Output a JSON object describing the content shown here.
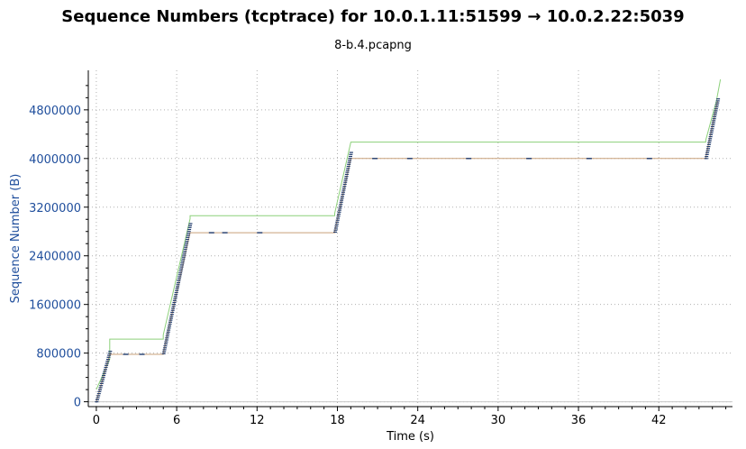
{
  "chart_data": {
    "type": "line",
    "title": "Sequence Numbers (tcptrace) for 10.0.1.11:51599 → 10.0.2.22:5039",
    "subtitle": "8-b.4.pcapng",
    "xlabel": "Time (s)",
    "ylabel": "Sequence Number (B)",
    "xlim": [
      -0.6,
      47.5
    ],
    "ylim": [
      -80000,
      5450000
    ],
    "x_ticks": [
      0,
      6,
      12,
      18,
      24,
      30,
      36,
      42
    ],
    "y_ticks": [
      0,
      800000,
      1600000,
      2400000,
      3200000,
      4000000,
      4800000
    ],
    "grid": true,
    "colors": {
      "data": "#1f3a6b",
      "window": "#8cd07a",
      "ack": "#c9a07a",
      "axis": "#000000",
      "grid": "#b0b0b0",
      "ytick": "#1f4e9c"
    },
    "series": [
      {
        "role": "receive-window",
        "style": "line",
        "color": "#8cd07a",
        "x": [
          0,
          1,
          1,
          5,
          5,
          7,
          7,
          17.8,
          17.8,
          19,
          19,
          45.5,
          45.5,
          46.3,
          46.6
        ],
        "y": [
          200000,
          700000,
          1030000,
          1030000,
          1100000,
          3010000,
          3060000,
          3060000,
          3100000,
          4270000,
          4270000,
          4270000,
          4300000,
          4950000,
          5300000
        ]
      },
      {
        "role": "ack",
        "style": "line",
        "color": "#c9a07a",
        "x": [
          0,
          1,
          1,
          5,
          5,
          7,
          7,
          17.8,
          17.8,
          19,
          19,
          45.5,
          45.5,
          46.4
        ],
        "y": [
          0,
          780000,
          780000,
          780000,
          800000,
          2780000,
          2780000,
          2780000,
          2800000,
          4000000,
          4000000,
          4000000,
          4020000,
          4950000
        ]
      },
      {
        "role": "data-segments",
        "style": "segments",
        "color": "#1f3a6b",
        "ramps": [
          [
            0,
            0,
            1,
            830000
          ],
          [
            5,
            790000,
            7,
            2930000
          ],
          [
            17.8,
            2790000,
            19,
            4100000
          ],
          [
            45.5,
            4000000,
            46.4,
            4980000
          ]
        ],
        "plateau_marks": [
          [
            2.2,
            780000
          ],
          [
            3.4,
            780000
          ],
          [
            8.6,
            2780000
          ],
          [
            9.6,
            2780000
          ],
          [
            12.2,
            2780000
          ],
          [
            20.8,
            4000000
          ],
          [
            23.4,
            4000000
          ],
          [
            27.8,
            4000000
          ],
          [
            32.3,
            4000000
          ],
          [
            36.8,
            4000000
          ],
          [
            41.3,
            4000000
          ]
        ]
      }
    ]
  }
}
